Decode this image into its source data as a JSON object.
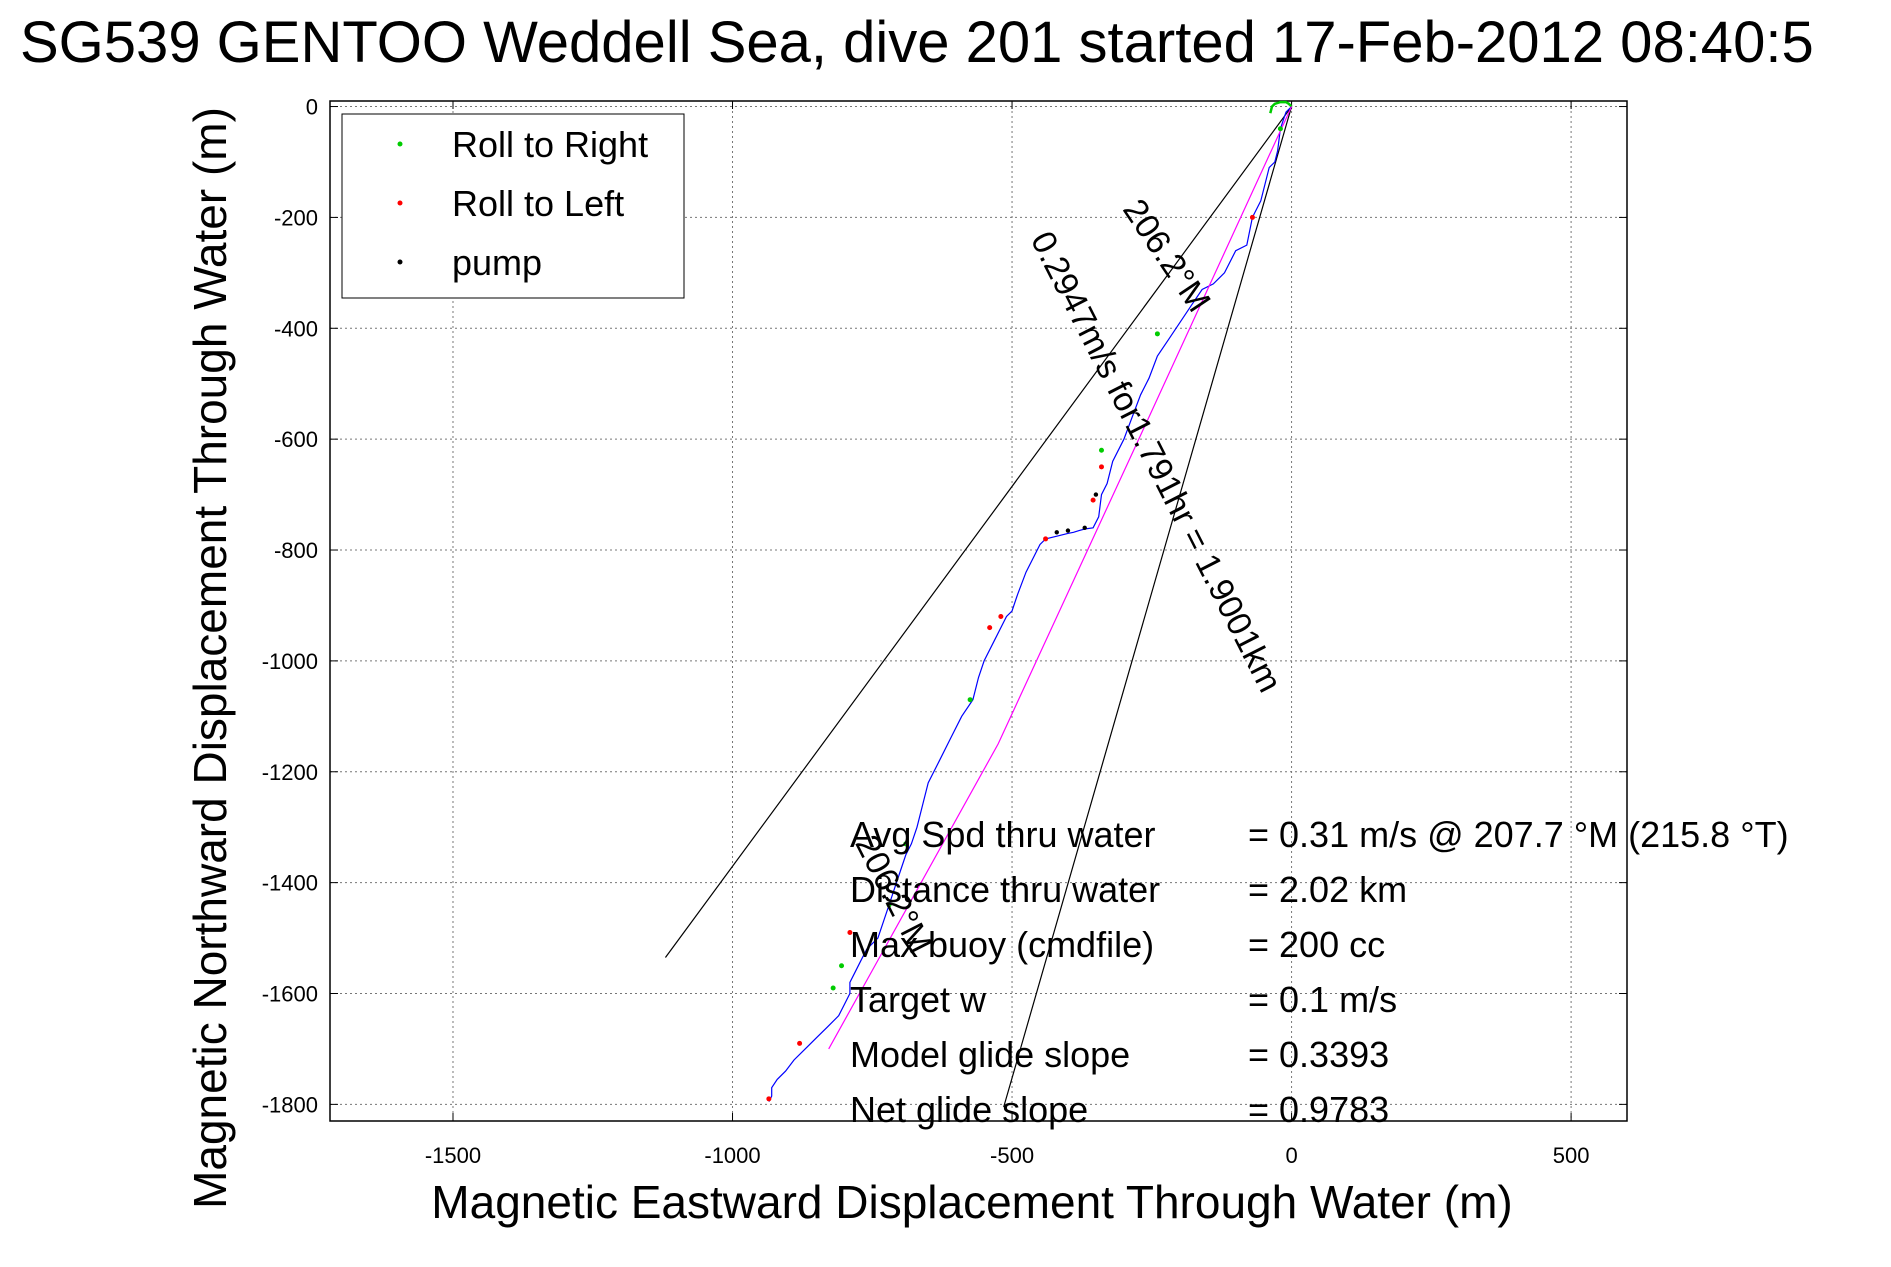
{
  "chart_data": {
    "type": "line",
    "title": "SG539 GENTOO Weddell Sea, dive 201 started 17-Feb-2012 08:40:5",
    "xlabel": "Magnetic Eastward Displacement Through Water (m)",
    "ylabel": "Magnetic Northward Displacement Through Water (m)",
    "xlim": [
      -1720,
      600
    ],
    "ylim": [
      -1830,
      10
    ],
    "xticks": [
      -1500,
      -1000,
      -500,
      0,
      500
    ],
    "yticks": [
      0,
      -200,
      -400,
      -600,
      -800,
      -1000,
      -1200,
      -1400,
      -1600,
      -1800
    ],
    "grid": true,
    "legend": {
      "placement": "top-left",
      "entries": [
        {
          "label": "Roll to Right",
          "color": "#00cc00"
        },
        {
          "label": "Roll to Left",
          "color": "#ff0000"
        },
        {
          "label": "pump",
          "color": "#000000"
        }
      ]
    },
    "series": [
      {
        "name": "track",
        "color": "#0000ff",
        "x": [
          0,
          -10,
          -20,
          -25,
          -30,
          -40,
          -45,
          -55,
          -70,
          -80,
          -100,
          -120,
          -140,
          -160,
          -180,
          -200,
          -220,
          -240,
          -255,
          -270,
          -285,
          -300,
          -320,
          -330,
          -340,
          -345,
          -355,
          -370,
          -380,
          -390,
          -400,
          -420,
          -440,
          -450,
          -460,
          -475,
          -490,
          -500,
          -510,
          -530,
          -550,
          -560,
          -570,
          -590,
          -610,
          -630,
          -650,
          -660,
          -670,
          -680,
          -690,
          -700,
          -710,
          -720,
          -730,
          -740,
          -760,
          -770,
          -780,
          -790,
          -790,
          -800,
          -810,
          -830,
          -850,
          -870,
          -890,
          -905,
          -920,
          -930,
          -930,
          -935
        ],
        "y": [
          0,
          -10,
          -40,
          -80,
          -100,
          -110,
          -130,
          -170,
          -200,
          -250,
          -260,
          -300,
          -320,
          -330,
          -360,
          -390,
          -420,
          -450,
          -490,
          -520,
          -560,
          -600,
          -640,
          -680,
          -700,
          -740,
          -760,
          -762,
          -765,
          -768,
          -770,
          -775,
          -780,
          -790,
          -810,
          -840,
          -880,
          -910,
          -920,
          -960,
          -1000,
          -1030,
          -1070,
          -1100,
          -1140,
          -1180,
          -1220,
          -1260,
          -1300,
          -1330,
          -1350,
          -1380,
          -1410,
          -1440,
          -1470,
          -1500,
          -1520,
          -1540,
          -1560,
          -1580,
          -1600,
          -1620,
          -1640,
          -1660,
          -1680,
          -1700,
          -1720,
          -1740,
          -1755,
          -1770,
          -1785,
          -1795
        ]
      },
      {
        "name": "surface",
        "color": "#00cc00",
        "x": [
          0,
          -5,
          -10,
          -20,
          -30,
          -35,
          -38
        ],
        "y": [
          0,
          5,
          8,
          8,
          5,
          0,
          -12
        ]
      },
      {
        "name": "heading line",
        "color": "#ff00ff",
        "x": [
          0,
          -255,
          -525,
          -828
        ],
        "y": [
          0,
          -560,
          -1150,
          -1700
        ]
      }
    ],
    "roll_right_points": {
      "x": [
        -20,
        -240,
        -340,
        -575,
        -690,
        -720,
        -805,
        -820
      ],
      "y": [
        -40,
        -410,
        -620,
        -1070,
        -1330,
        -1440,
        -1550,
        -1590
      ],
      "color": "#00cc00"
    },
    "roll_left_points": {
      "x": [
        -70,
        -340,
        -355,
        -440,
        -520,
        -540,
        -790,
        -880,
        -935
      ],
      "y": [
        -200,
        -650,
        -710,
        -780,
        -920,
        -940,
        -1490,
        -1690,
        -1790
      ],
      "color": "#ff0000"
    },
    "pump_points": {
      "x": [
        -350,
        -370,
        -400,
        -420
      ],
      "y": [
        -700,
        -760,
        -765,
        -768
      ],
      "color": "#000000"
    },
    "reference_lines": [
      {
        "x": [
          0,
          -1120
        ],
        "y": [
          0,
          -1535
        ],
        "color": "#000000"
      },
      {
        "x": [
          0,
          -515
        ],
        "y": [
          0,
          -1805
        ],
        "color": "#000000"
      }
    ],
    "annotations": [
      {
        "text": "206.2°M",
        "x": -240,
        "y": -280,
        "rotation": 56
      },
      {
        "text": "0.2947m/s for1.791hr = 1.9001km",
        "x": -260,
        "y": -650,
        "rotation": 63
      },
      {
        "text": "206.2°M",
        "x": -730,
        "y": -1430,
        "rotation": 63
      }
    ],
    "stats": [
      {
        "label": "Avg Spd thru water",
        "value": "=  0.31 m/s @ 207.7 °M (215.8 °T)"
      },
      {
        "label": "Distance thru water",
        "value": "=  2.02 km"
      },
      {
        "label": "Max buoy (cmdfile)",
        "value": "= 200 cc"
      },
      {
        "label": "Target w",
        "value": "= 0.1 m/s"
      },
      {
        "label": "Model glide slope",
        "value": "= 0.3393"
      },
      {
        "label": "Net glide slope",
        "value": "= 0.9783"
      }
    ],
    "colors": {
      "track": "#0000ff",
      "heading": "#ff00ff",
      "roll_right": "#00cc00",
      "roll_left": "#ff0000",
      "pump": "#000000",
      "grid": "#777777"
    }
  }
}
